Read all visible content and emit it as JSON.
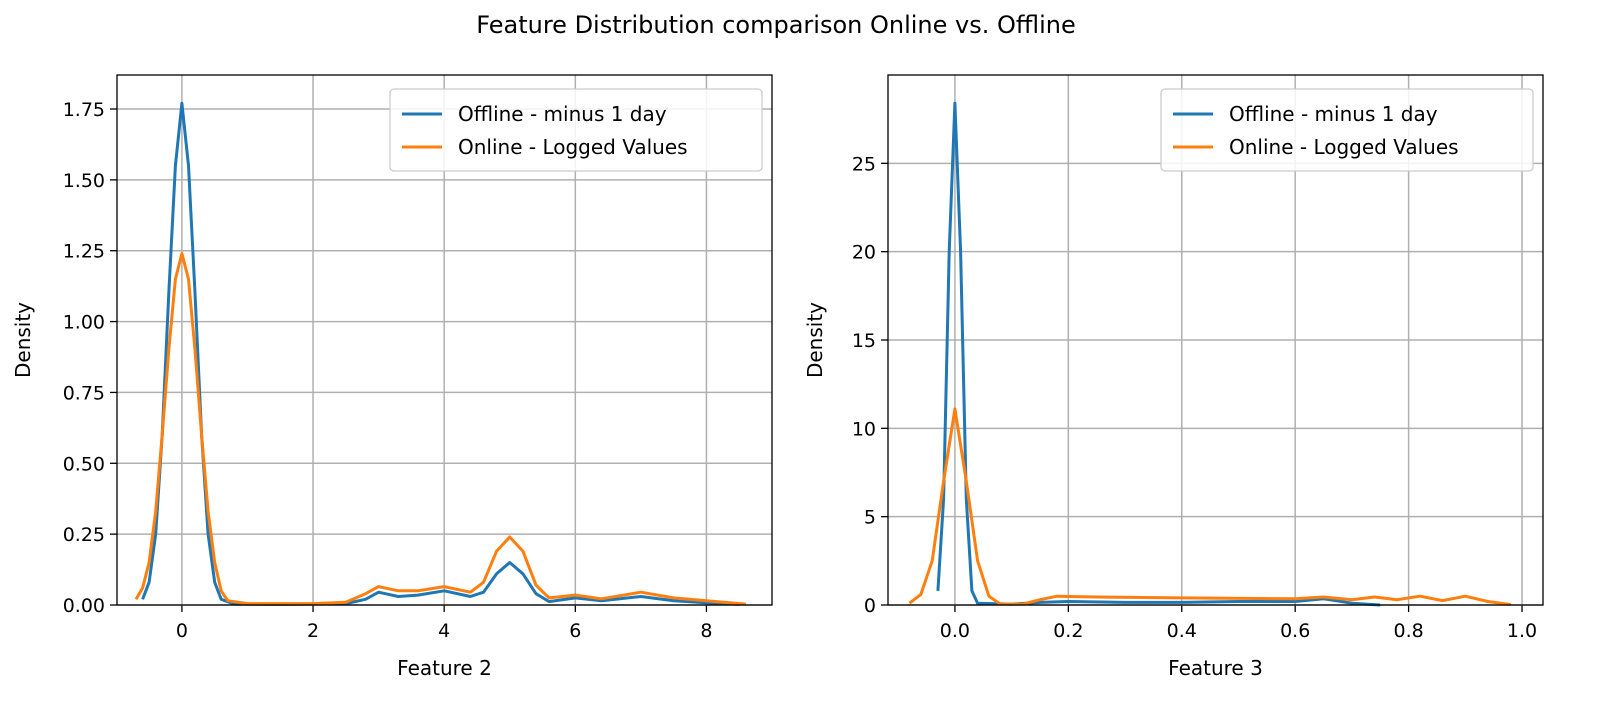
{
  "title": "Feature Distribution comparison Online vs. Offline",
  "colors": {
    "offline": "#1f77b4",
    "online": "#ff7f0e",
    "grid": "#b0b0b0"
  },
  "chart_data": [
    {
      "type": "line",
      "xlabel": "Feature 2",
      "ylabel": "Density",
      "xlim": [
        -0.99,
        9.0
      ],
      "ylim": [
        0,
        1.87
      ],
      "xticks": [
        0,
        2,
        4,
        6,
        8
      ],
      "xtick_labels": [
        "0",
        "2",
        "4",
        "6",
        "8"
      ],
      "yticks": [
        0,
        0.25,
        0.5,
        0.75,
        1.0,
        1.25,
        1.5,
        1.75
      ],
      "ytick_labels": [
        "0.00",
        "0.25",
        "0.50",
        "0.75",
        "1.00",
        "1.25",
        "1.50",
        "1.75"
      ],
      "grid": true,
      "legend_position": "top-right",
      "series": [
        {
          "name": "Offline - minus 1 day",
          "color": "#1f77b4",
          "x": [
            -0.6,
            -0.5,
            -0.4,
            -0.3,
            -0.2,
            -0.1,
            0,
            0.1,
            0.2,
            0.3,
            0.4,
            0.5,
            0.6,
            0.8,
            1.5,
            2,
            2.5,
            2.8,
            3,
            3.3,
            3.6,
            4,
            4.4,
            4.6,
            4.8,
            5,
            5.2,
            5.4,
            5.6,
            6,
            6.4,
            7,
            7.5,
            8,
            8.5
          ],
          "y": [
            0.02,
            0.08,
            0.25,
            0.6,
            1.1,
            1.55,
            1.77,
            1.55,
            1.1,
            0.6,
            0.25,
            0.08,
            0.02,
            0.003,
            0.002,
            0.003,
            0.005,
            0.02,
            0.045,
            0.03,
            0.035,
            0.05,
            0.03,
            0.045,
            0.11,
            0.15,
            0.11,
            0.04,
            0.012,
            0.025,
            0.015,
            0.03,
            0.015,
            0.008,
            0.002
          ]
        },
        {
          "name": "Online - Logged Values",
          "color": "#ff7f0e",
          "x": [
            -0.7,
            -0.6,
            -0.5,
            -0.4,
            -0.3,
            -0.2,
            -0.1,
            0,
            0.1,
            0.2,
            0.3,
            0.4,
            0.5,
            0.6,
            0.7,
            1,
            2,
            2.5,
            2.8,
            3,
            3.3,
            3.6,
            4,
            4.4,
            4.6,
            4.8,
            5,
            5.2,
            5.4,
            5.6,
            6,
            6.4,
            7,
            7.5,
            8,
            8.6
          ],
          "y": [
            0.02,
            0.06,
            0.15,
            0.33,
            0.6,
            0.9,
            1.15,
            1.24,
            1.15,
            0.9,
            0.6,
            0.33,
            0.15,
            0.05,
            0.015,
            0.005,
            0.005,
            0.01,
            0.04,
            0.065,
            0.05,
            0.05,
            0.065,
            0.045,
            0.08,
            0.19,
            0.24,
            0.19,
            0.07,
            0.025,
            0.035,
            0.022,
            0.045,
            0.025,
            0.015,
            0.003
          ]
        }
      ]
    },
    {
      "type": "line",
      "xlabel": "Feature 3",
      "ylabel": "Density",
      "xlim": [
        -0.118,
        1.037
      ],
      "ylim": [
        0,
        30
      ],
      "xticks": [
        0,
        0.2,
        0.4,
        0.6,
        0.8,
        1.0
      ],
      "xtick_labels": [
        "0.0",
        "0.2",
        "0.4",
        "0.6",
        "0.8",
        "1.0"
      ],
      "yticks": [
        0,
        5,
        10,
        15,
        20,
        25
      ],
      "ytick_labels": [
        "0",
        "5",
        "10",
        "15",
        "20",
        "25"
      ],
      "grid": true,
      "legend_position": "top-right",
      "series": [
        {
          "name": "Offline - minus 1 day",
          "color": "#1f77b4",
          "x": [
            -0.03,
            -0.02,
            -0.01,
            0,
            0.01,
            0.02,
            0.03,
            0.04,
            0.1,
            0.15,
            0.2,
            0.3,
            0.4,
            0.5,
            0.6,
            0.65,
            0.7,
            0.75
          ],
          "y": [
            0.8,
            6,
            20,
            28.4,
            20,
            6,
            0.8,
            0.1,
            0.05,
            0.15,
            0.2,
            0.15,
            0.15,
            0.2,
            0.2,
            0.35,
            0.1,
            0
          ]
        },
        {
          "name": "Online - Logged Values",
          "color": "#ff7f0e",
          "x": [
            -0.08,
            -0.06,
            -0.04,
            -0.02,
            0,
            0.02,
            0.04,
            0.06,
            0.08,
            0.12,
            0.15,
            0.18,
            0.25,
            0.4,
            0.6,
            0.65,
            0.7,
            0.74,
            0.78,
            0.82,
            0.86,
            0.9,
            0.94,
            0.98
          ],
          "y": [
            0.1,
            0.6,
            2.5,
            7,
            11.1,
            7,
            2.5,
            0.5,
            0.05,
            0.05,
            0.3,
            0.5,
            0.45,
            0.4,
            0.35,
            0.45,
            0.3,
            0.45,
            0.3,
            0.5,
            0.25,
            0.5,
            0.2,
            0.02
          ]
        }
      ]
    }
  ]
}
